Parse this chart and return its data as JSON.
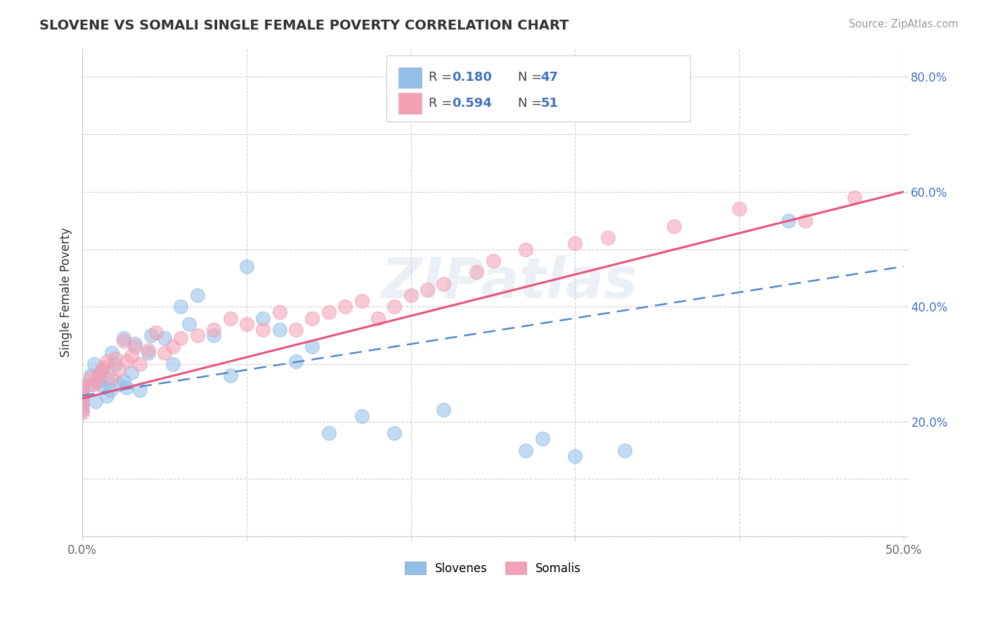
{
  "title": "SLOVENE VS SOMALI SINGLE FEMALE POVERTY CORRELATION CHART",
  "source": "Source: ZipAtlas.com",
  "ylabel": "Single Female Poverty",
  "xlim": [
    0.0,
    0.5
  ],
  "ylim": [
    0.0,
    0.85
  ],
  "slovene_color": "#92bfe8",
  "somali_color": "#f4a0b5",
  "slovene_line_color": "#5588cc",
  "somali_line_color": "#e8547a",
  "slovene_R": 0.18,
  "slovene_N": 47,
  "somali_R": 0.594,
  "somali_N": 51,
  "watermark": "ZIPatlas",
  "slovene_intercept": 0.245,
  "slovene_slope": 0.45,
  "somali_intercept": 0.24,
  "somali_slope": 0.72,
  "slovene_x": [
    0.0,
    0.0,
    0.0,
    0.0,
    0.0,
    0.005,
    0.005,
    0.007,
    0.008,
    0.01,
    0.012,
    0.013,
    0.015,
    0.015,
    0.017,
    0.018,
    0.02,
    0.022,
    0.025,
    0.025,
    0.027,
    0.03,
    0.032,
    0.035,
    0.04,
    0.042,
    0.05,
    0.055,
    0.06,
    0.065,
    0.07,
    0.08,
    0.09,
    0.1,
    0.11,
    0.12,
    0.13,
    0.14,
    0.15,
    0.17,
    0.19,
    0.22,
    0.27,
    0.28,
    0.3,
    0.33,
    0.43
  ],
  "slovene_y": [
    0.26,
    0.25,
    0.24,
    0.23,
    0.22,
    0.28,
    0.265,
    0.3,
    0.235,
    0.27,
    0.29,
    0.26,
    0.245,
    0.275,
    0.255,
    0.32,
    0.3,
    0.265,
    0.345,
    0.27,
    0.26,
    0.285,
    0.335,
    0.255,
    0.32,
    0.35,
    0.345,
    0.3,
    0.4,
    0.37,
    0.42,
    0.35,
    0.28,
    0.47,
    0.38,
    0.36,
    0.305,
    0.33,
    0.18,
    0.21,
    0.18,
    0.22,
    0.15,
    0.17,
    0.14,
    0.15,
    0.55
  ],
  "somali_x": [
    0.0,
    0.0,
    0.0,
    0.0,
    0.0,
    0.0,
    0.005,
    0.007,
    0.008,
    0.01,
    0.012,
    0.013,
    0.015,
    0.018,
    0.02,
    0.022,
    0.025,
    0.027,
    0.03,
    0.032,
    0.035,
    0.04,
    0.045,
    0.05,
    0.055,
    0.06,
    0.07,
    0.08,
    0.09,
    0.1,
    0.11,
    0.12,
    0.13,
    0.14,
    0.15,
    0.16,
    0.17,
    0.18,
    0.19,
    0.2,
    0.21,
    0.22,
    0.24,
    0.25,
    0.27,
    0.3,
    0.32,
    0.36,
    0.4,
    0.44,
    0.47
  ],
  "somali_y": [
    0.265,
    0.255,
    0.245,
    0.235,
    0.225,
    0.215,
    0.275,
    0.265,
    0.27,
    0.28,
    0.29,
    0.295,
    0.305,
    0.275,
    0.31,
    0.29,
    0.34,
    0.305,
    0.315,
    0.33,
    0.3,
    0.325,
    0.355,
    0.32,
    0.33,
    0.345,
    0.35,
    0.36,
    0.38,
    0.37,
    0.36,
    0.39,
    0.36,
    0.38,
    0.39,
    0.4,
    0.41,
    0.38,
    0.4,
    0.42,
    0.43,
    0.44,
    0.46,
    0.48,
    0.5,
    0.51,
    0.52,
    0.54,
    0.57,
    0.55,
    0.59
  ]
}
